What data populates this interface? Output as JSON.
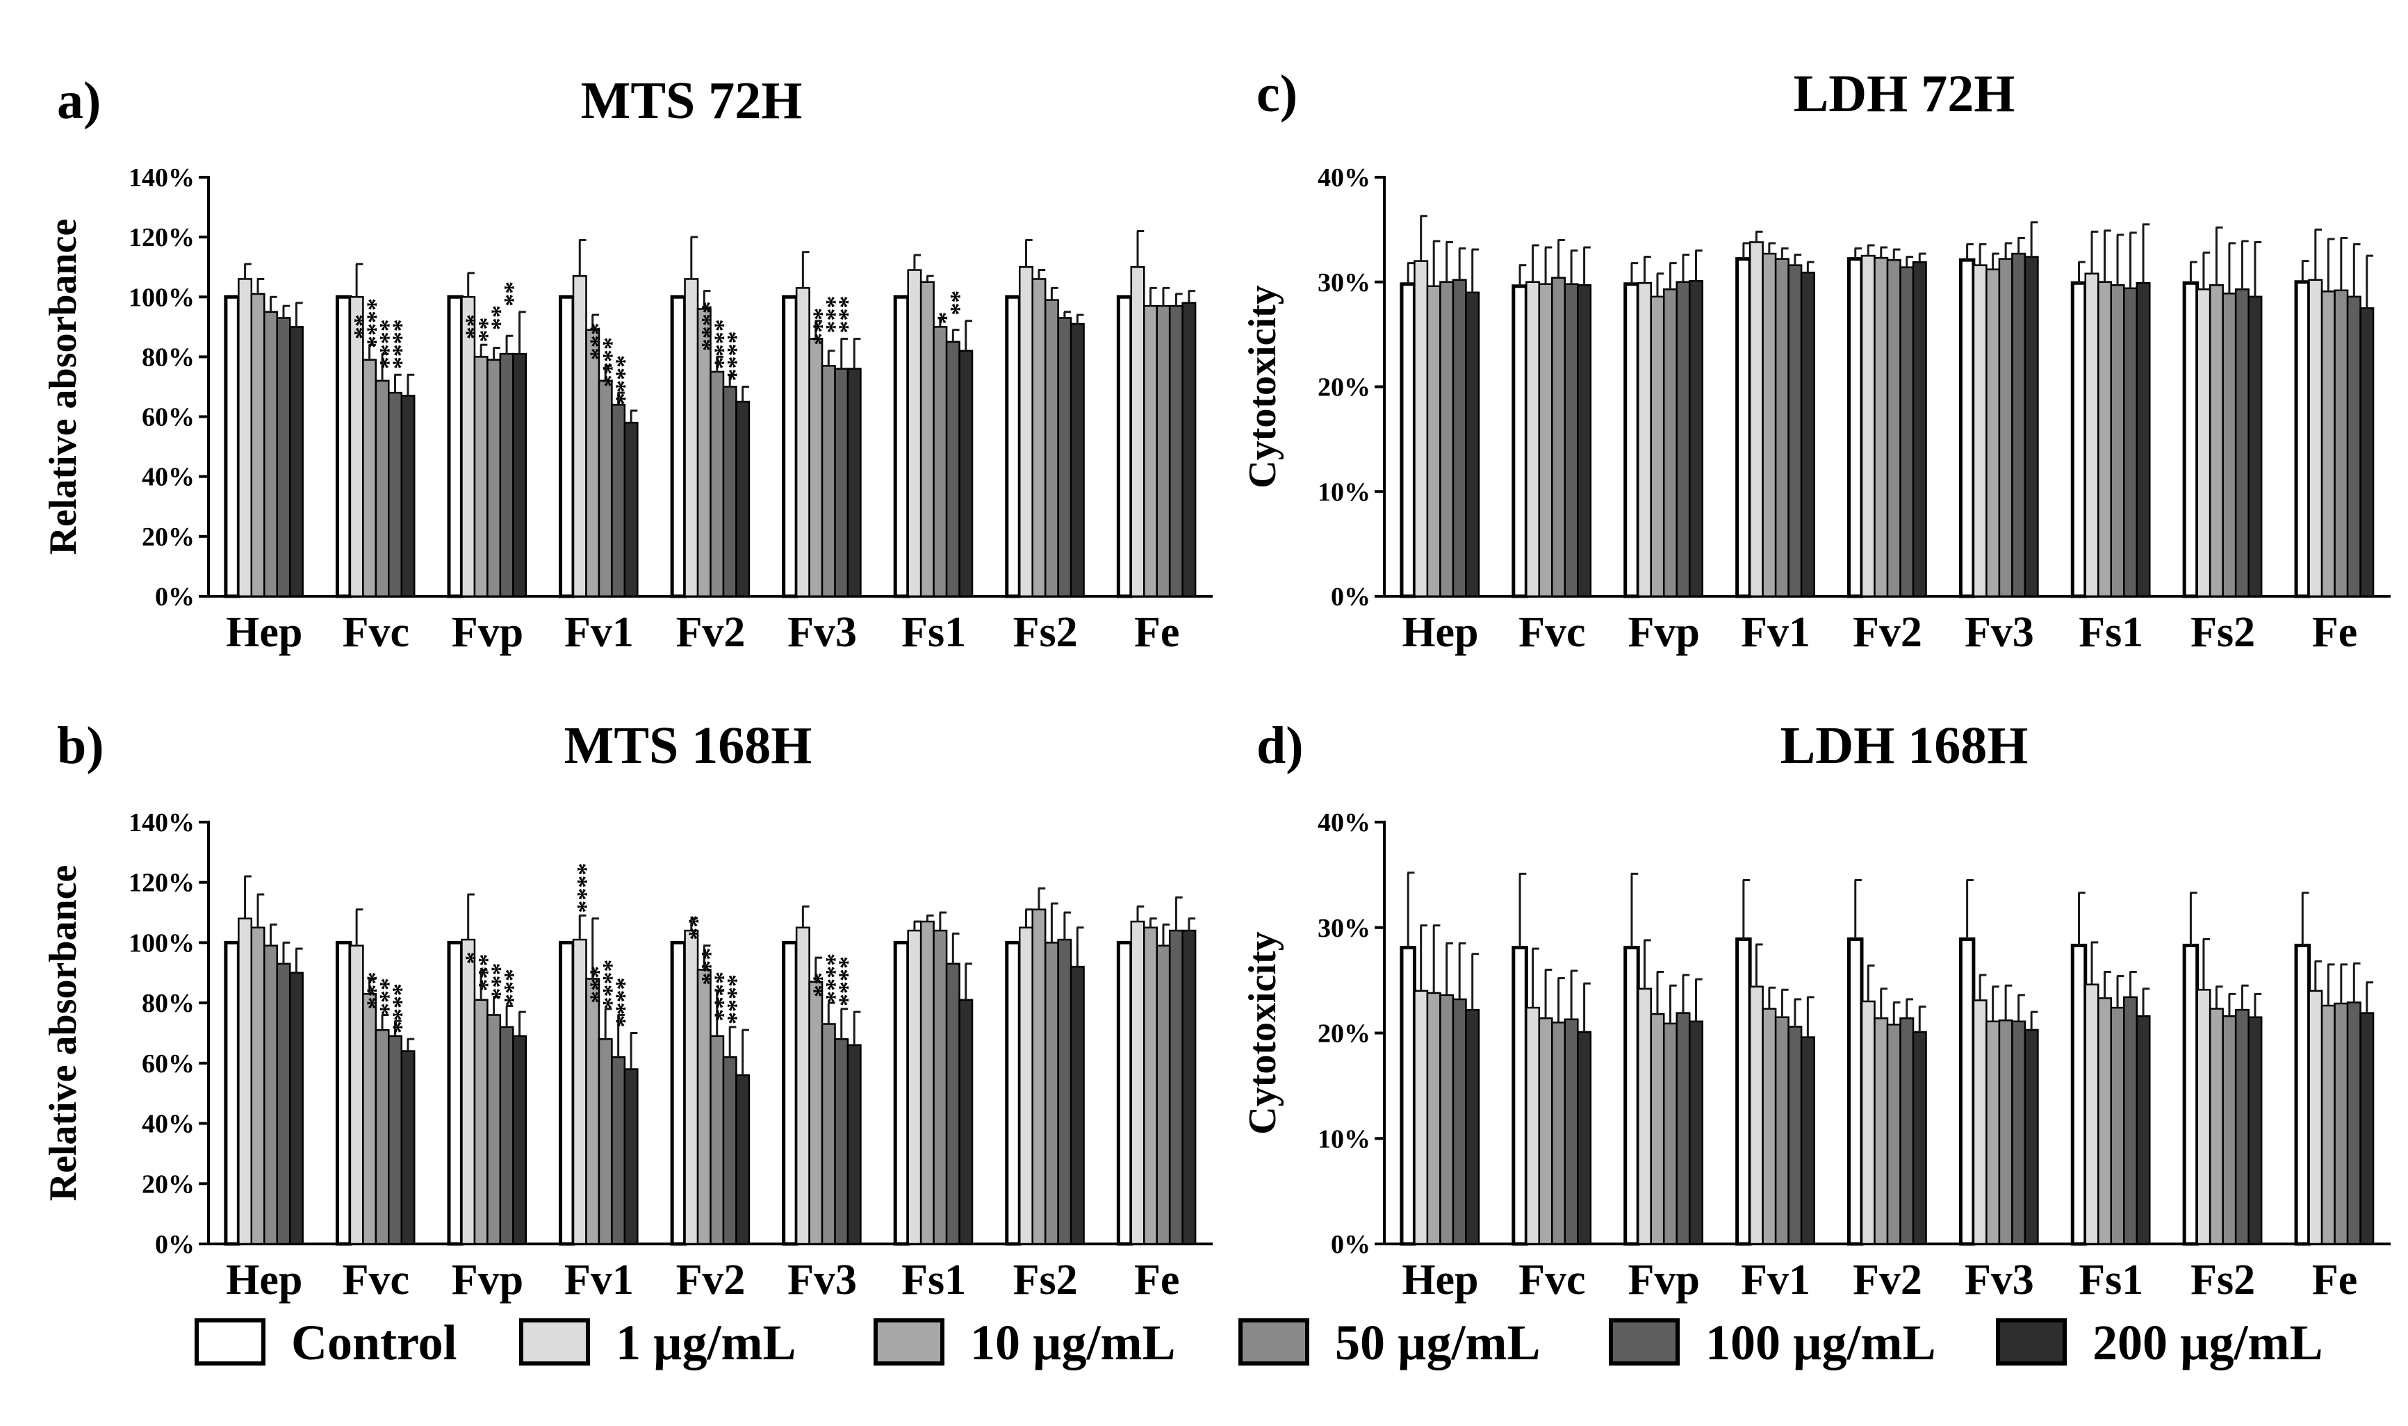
{
  "colors": {
    "Control": "#ffffff",
    "1 µg/mL": "#dcdcdc",
    "10 µg/mL": "#a8a8a8",
    "50 µg/mL": "#8a8a8a",
    "100 µg/mL": "#5e5e5e",
    "200 µg/mL": "#2e2e2e"
  },
  "legend": [
    "Control",
    "1 µg/mL",
    "10 µg/mL",
    "50 µg/mL",
    "100 µg/mL",
    "200 µg/mL"
  ],
  "chart_data": [
    {
      "id": "a",
      "letter": "a)",
      "type": "bar",
      "title": "MTS 72H",
      "ylabel": "Relative absorbance",
      "ylim": [
        0,
        140
      ],
      "yticks": [
        "0%",
        "20%",
        "40%",
        "60%",
        "80%",
        "100%",
        "120%",
        "140%"
      ],
      "categories": [
        "Hep",
        "Fvc",
        "Fvp",
        "Fv1",
        "Fv2",
        "Fv3",
        "Fs1",
        "Fs2",
        "Fe"
      ],
      "series": [
        {
          "name": "Control",
          "values": [
            100,
            100,
            100,
            100,
            100,
            100,
            100,
            100,
            100
          ],
          "errors": [
            0,
            0,
            0,
            0,
            0,
            0,
            0,
            0,
            0
          ],
          "sig": [
            "",
            "",
            "",
            "",
            "",
            "",
            "",
            "",
            ""
          ]
        },
        {
          "name": "1 µg/mL",
          "values": [
            106,
            100,
            100,
            107,
            106,
            103,
            109,
            110,
            110
          ],
          "errors": [
            5,
            11,
            8,
            12,
            14,
            12,
            5,
            9,
            12
          ],
          "sig": [
            "",
            "",
            "",
            "",
            "",
            "",
            "",
            "",
            ""
          ]
        },
        {
          "name": "10 µg/mL",
          "values": [
            101,
            79,
            80,
            89,
            96,
            86,
            105,
            106,
            97
          ],
          "errors": [
            5,
            5,
            4,
            5,
            6,
            6,
            2,
            3,
            6
          ],
          "sig": [
            "",
            "**",
            "**",
            "",
            "",
            "",
            "",
            "",
            ""
          ]
        },
        {
          "name": "50 µg/mL",
          "values": [
            95,
            72,
            79,
            72,
            75,
            77,
            90,
            99,
            97
          ],
          "errors": [
            5,
            9,
            4,
            5,
            5,
            5,
            3,
            4,
            6
          ],
          "sig": [
            "",
            "****",
            "**",
            "***",
            "****",
            "***",
            "",
            "",
            ""
          ]
        },
        {
          "name": "100 µg/mL",
          "values": [
            93,
            68,
            81,
            64,
            70,
            76,
            85,
            93,
            97
          ],
          "errors": [
            4,
            6,
            6,
            4,
            4,
            10,
            4,
            2,
            4
          ],
          "sig": [
            "",
            "****",
            "**",
            "****",
            "****",
            "***",
            "*",
            "",
            ""
          ]
        },
        {
          "name": "200 µg/mL",
          "values": [
            90,
            67,
            81,
            58,
            65,
            76,
            82,
            91,
            98
          ],
          "errors": [
            8,
            7,
            14,
            4,
            5,
            10,
            10,
            3,
            4
          ],
          "sig": [
            "",
            "****",
            "**",
            "****",
            "****",
            "***",
            "**",
            "",
            ""
          ]
        }
      ]
    },
    {
      "id": "b",
      "letter": "b)",
      "type": "bar",
      "title": "MTS 168H",
      "ylabel": "Relative absorbance",
      "ylim": [
        0,
        140
      ],
      "yticks": [
        "0%",
        "20%",
        "40%",
        "60%",
        "80%",
        "100%",
        "120%",
        "140%"
      ],
      "categories": [
        "Hep",
        "Fvc",
        "Fvp",
        "Fv1",
        "Fv2",
        "Fv3",
        "Fs1",
        "Fs2",
        "Fe"
      ],
      "series": [
        {
          "name": "Control",
          "values": [
            100,
            100,
            100,
            100,
            100,
            100,
            100,
            100,
            100
          ],
          "errors": [
            0,
            0,
            0,
            0,
            0,
            0,
            0,
            0,
            0
          ],
          "sig": [
            "",
            "",
            "",
            "",
            "",
            "",
            "",
            "",
            ""
          ]
        },
        {
          "name": "1 µg/mL",
          "values": [
            108,
            99,
            101,
            101,
            104,
            105,
            104,
            105,
            107
          ],
          "errors": [
            14,
            12,
            15,
            8,
            4,
            7,
            3,
            6,
            5
          ],
          "sig": [
            "",
            "",
            "",
            "",
            "",
            "",
            "",
            "",
            ""
          ]
        },
        {
          "name": "10 µg/mL",
          "values": [
            105,
            83,
            81,
            88,
            91,
            87,
            107,
            111,
            105
          ],
          "errors": [
            11,
            5,
            10,
            20,
            8,
            8,
            2,
            7,
            3
          ],
          "sig": [
            "",
            "",
            "*",
            "****",
            "**",
            "",
            "",
            "",
            ""
          ]
        },
        {
          "name": "50 µg/mL",
          "values": [
            99,
            71,
            76,
            68,
            69,
            73,
            104,
            100,
            99
          ],
          "errors": [
            7,
            5,
            6,
            10,
            15,
            7,
            6,
            13,
            7
          ],
          "sig": [
            "",
            "***",
            "***",
            "***",
            "***",
            "**",
            "",
            "",
            ""
          ]
        },
        {
          "name": "100 µg/mL",
          "values": [
            93,
            69,
            72,
            62,
            62,
            68,
            93,
            101,
            104
          ],
          "errors": [
            7,
            5,
            7,
            14,
            10,
            10,
            10,
            9,
            11
          ],
          "sig": [
            "",
            "***",
            "***",
            "****",
            "****",
            "****",
            "",
            "",
            ""
          ]
        },
        {
          "name": "200 µg/mL",
          "values": [
            90,
            64,
            69,
            58,
            56,
            66,
            81,
            92,
            104
          ],
          "errors": [
            8,
            4,
            8,
            12,
            15,
            11,
            12,
            13,
            4
          ],
          "sig": [
            "",
            "****",
            "***",
            "****",
            "****",
            "****",
            "",
            "",
            ""
          ]
        }
      ]
    },
    {
      "id": "c",
      "letter": "c)",
      "type": "bar",
      "title": "LDH 72H",
      "ylabel": "Cytotoxicity",
      "ylim": [
        0,
        40
      ],
      "yticks": [
        "0%",
        "10%",
        "20%",
        "30%",
        "40%"
      ],
      "categories": [
        "Hep",
        "Fvc",
        "Fvp",
        "Fv1",
        "Fv2",
        "Fv3",
        "Fs1",
        "Fs2",
        "Fe"
      ],
      "series": [
        {
          "name": "Control",
          "values": [
            29.8,
            29.6,
            29.8,
            32.2,
            32.2,
            32.1,
            29.9,
            29.9,
            30.0
          ],
          "errors": [
            2,
            2,
            2,
            1.5,
            1,
            1.5,
            2,
            2,
            2
          ],
          "sig": [
            "",
            "",
            "",
            "",
            "",
            "",
            "",
            "",
            ""
          ]
        },
        {
          "name": "1 µg/mL",
          "values": [
            32.0,
            30.0,
            29.9,
            33.8,
            32.5,
            31.6,
            30.8,
            29.3,
            30.2
          ],
          "errors": [
            4.3,
            3.5,
            2.5,
            1,
            1,
            2,
            4,
            3.5,
            4.8
          ],
          "sig": [
            "",
            "",
            "",
            "",
            "",
            "",
            "",
            "",
            ""
          ]
        },
        {
          "name": "10 µg/mL",
          "values": [
            29.6,
            29.8,
            28.6,
            32.7,
            32.3,
            31.2,
            30.0,
            29.7,
            29.1
          ],
          "errors": [
            4.3,
            3.5,
            2.2,
            1,
            1,
            1.5,
            4.9,
            5.5,
            5
          ],
          "sig": [
            "",
            "",
            "",
            "",
            "",
            "",
            "",
            "",
            ""
          ]
        },
        {
          "name": "50 µg/mL",
          "values": [
            30.0,
            30.4,
            29.3,
            32.2,
            32.1,
            32.2,
            29.7,
            28.9,
            29.2
          ],
          "errors": [
            3.8,
            3.6,
            2.5,
            1,
            1,
            1.5,
            4.8,
            4.8,
            5
          ],
          "sig": [
            "",
            "",
            "",
            "",
            "",
            "",
            "",
            "",
            ""
          ]
        },
        {
          "name": "100 µg/mL",
          "values": [
            30.2,
            29.8,
            30.0,
            31.6,
            31.4,
            32.7,
            29.4,
            29.3,
            28.6
          ],
          "errors": [
            3,
            3.2,
            2.6,
            1,
            1,
            1.5,
            5.3,
            4.6,
            5
          ],
          "sig": [
            "",
            "",
            "",
            "",
            "",
            "",
            "",
            "",
            ""
          ]
        },
        {
          "name": "200 µg/mL",
          "values": [
            29.0,
            29.7,
            30.1,
            30.9,
            31.9,
            32.4,
            29.9,
            28.6,
            27.5
          ],
          "errors": [
            4.1,
            3.6,
            2.9,
            1,
            0.8,
            3.3,
            5.6,
            5.2,
            5
          ],
          "sig": [
            "",
            "",
            "",
            "",
            "",
            "",
            "",
            "",
            ""
          ]
        }
      ]
    },
    {
      "id": "d",
      "letter": "d)",
      "type": "bar",
      "title": "LDH 168H",
      "ylabel": "Cytotoxicity",
      "ylim": [
        0,
        40
      ],
      "yticks": [
        "0%",
        "10%",
        "20%",
        "30%",
        "40%"
      ],
      "categories": [
        "Hep",
        "Fvc",
        "Fvp",
        "Fv1",
        "Fv2",
        "Fv3",
        "Fs1",
        "Fs2",
        "Fe"
      ],
      "series": [
        {
          "name": "Control",
          "values": [
            28.1,
            28.1,
            28.1,
            28.9,
            28.9,
            28.9,
            28.3,
            28.3,
            28.3
          ],
          "errors": [
            7.1,
            7,
            7,
            5.6,
            5.6,
            5.6,
            5,
            5,
            5
          ],
          "sig": [
            "",
            "",
            "",
            "",
            "",
            "",
            "",
            "",
            ""
          ]
        },
        {
          "name": "1 µg/mL",
          "values": [
            24.0,
            22.4,
            24.2,
            24.4,
            23.0,
            23.1,
            24.6,
            24.1,
            24.0
          ],
          "errors": [
            6.2,
            5.6,
            4.6,
            4,
            3.4,
            2.4,
            4,
            4.8,
            2.8
          ],
          "sig": [
            "",
            "",
            "",
            "",
            "",
            "",
            "",
            "",
            ""
          ]
        },
        {
          "name": "10 µg/mL",
          "values": [
            23.8,
            21.4,
            21.8,
            22.3,
            21.4,
            21.1,
            23.3,
            22.3,
            22.6
          ],
          "errors": [
            6.4,
            4.6,
            4,
            2,
            2.8,
            3.3,
            2.5,
            2.1,
            3.9
          ],
          "sig": [
            "",
            "",
            "",
            "",
            "",
            "",
            "",
            "",
            ""
          ]
        },
        {
          "name": "50 µg/mL",
          "values": [
            23.6,
            21.0,
            20.9,
            21.5,
            20.8,
            21.2,
            22.4,
            21.6,
            22.8
          ],
          "errors": [
            4.9,
            4.2,
            3.6,
            2.6,
            2.1,
            3.3,
            3,
            2.1,
            3.7
          ],
          "sig": [
            "",
            "",
            "",
            "",
            "",
            "",
            "",
            "",
            ""
          ]
        },
        {
          "name": "100 µg/mL",
          "values": [
            23.2,
            21.3,
            21.9,
            20.6,
            21.4,
            21.1,
            23.4,
            22.2,
            22.9
          ],
          "errors": [
            5.3,
            4.6,
            3.6,
            2.6,
            1.8,
            2.5,
            2.4,
            2.3,
            3.7
          ],
          "sig": [
            "",
            "",
            "",
            "",
            "",
            "",
            "",
            "",
            ""
          ]
        },
        {
          "name": "200 µg/mL",
          "values": [
            22.2,
            20.1,
            21.1,
            19.6,
            20.1,
            20.3,
            21.6,
            21.5,
            21.9
          ],
          "errors": [
            5.3,
            4.6,
            4,
            3.8,
            2.4,
            1.7,
            2.6,
            2.2,
            2.9
          ],
          "sig": [
            "",
            "",
            "",
            "",
            "",
            "",
            "",
            "",
            ""
          ]
        }
      ]
    }
  ]
}
